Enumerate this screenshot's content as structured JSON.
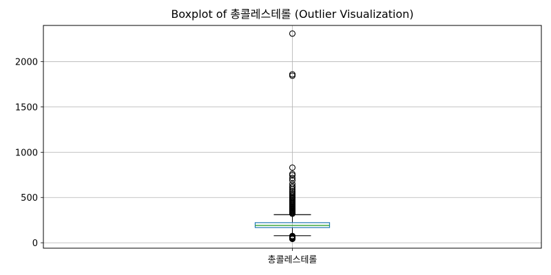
{
  "chart_data": {
    "type": "boxplot",
    "title": "Boxplot of 총콜레스테롤 (Outlier Visualization)",
    "categories": [
      "총콜레스테롤"
    ],
    "ylim": [
      -60,
      2400
    ],
    "yticks": [
      0,
      500,
      1000,
      1500,
      2000
    ],
    "yticklabels": [
      "0",
      "500",
      "1000",
      "1500",
      "2000"
    ],
    "grid": true,
    "series": [
      {
        "category": "총콜레스테롤",
        "whisker_low": 78,
        "q1": 168,
        "median": 192,
        "q3": 222,
        "whisker_high": 310,
        "outliers": [
          2310,
          1860,
          1845,
          830,
          760,
          745,
          715,
          690,
          650,
          625,
          610,
          590,
          570,
          555,
          540,
          525,
          510,
          500,
          490,
          480,
          470,
          460,
          450,
          440,
          430,
          420,
          410,
          400,
          392,
          384,
          376,
          368,
          360,
          352,
          344,
          336,
          328,
          320,
          75,
          68,
          62,
          57,
          52,
          47,
          42
        ]
      }
    ],
    "colors": {
      "box": "#1f77b4",
      "median": "#2ca02c",
      "whisker": "#000000",
      "flier": "#000000",
      "grid": "#b0b0b0"
    }
  }
}
